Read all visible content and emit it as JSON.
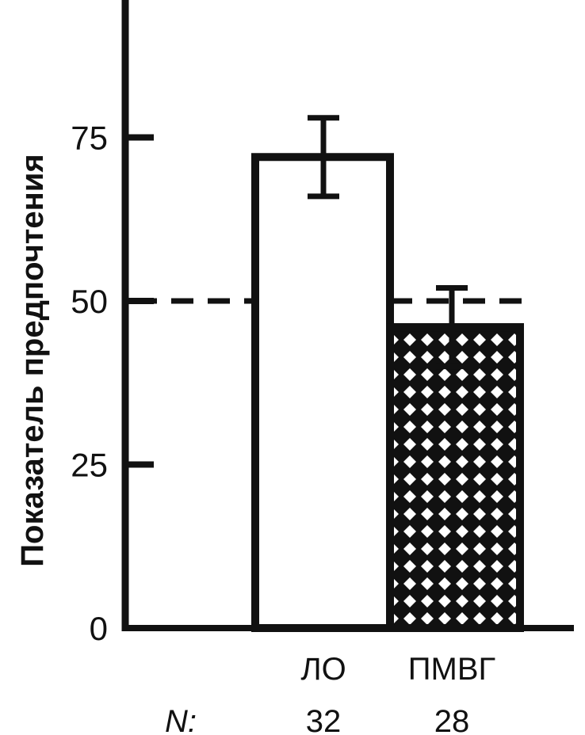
{
  "chart_data": {
    "type": "bar",
    "ylabel": "Показатель предпочтения",
    "ylim": [
      0,
      96
    ],
    "yticks": [
      0,
      25,
      50,
      75
    ],
    "reference_line": 50,
    "categories": [
      "ЛО",
      "ПМВГ"
    ],
    "values": [
      72,
      46
    ],
    "errors": [
      {
        "low": 66,
        "high": 78
      },
      {
        "low": 40,
        "high": 52
      }
    ],
    "fills": [
      "none",
      "crosshatch"
    ],
    "n_label": "N:",
    "n_values": [
      "32",
      "28"
    ],
    "grid": false,
    "legend": "none"
  },
  "colors": {
    "ink": "#111111",
    "background": "#ffffff"
  }
}
